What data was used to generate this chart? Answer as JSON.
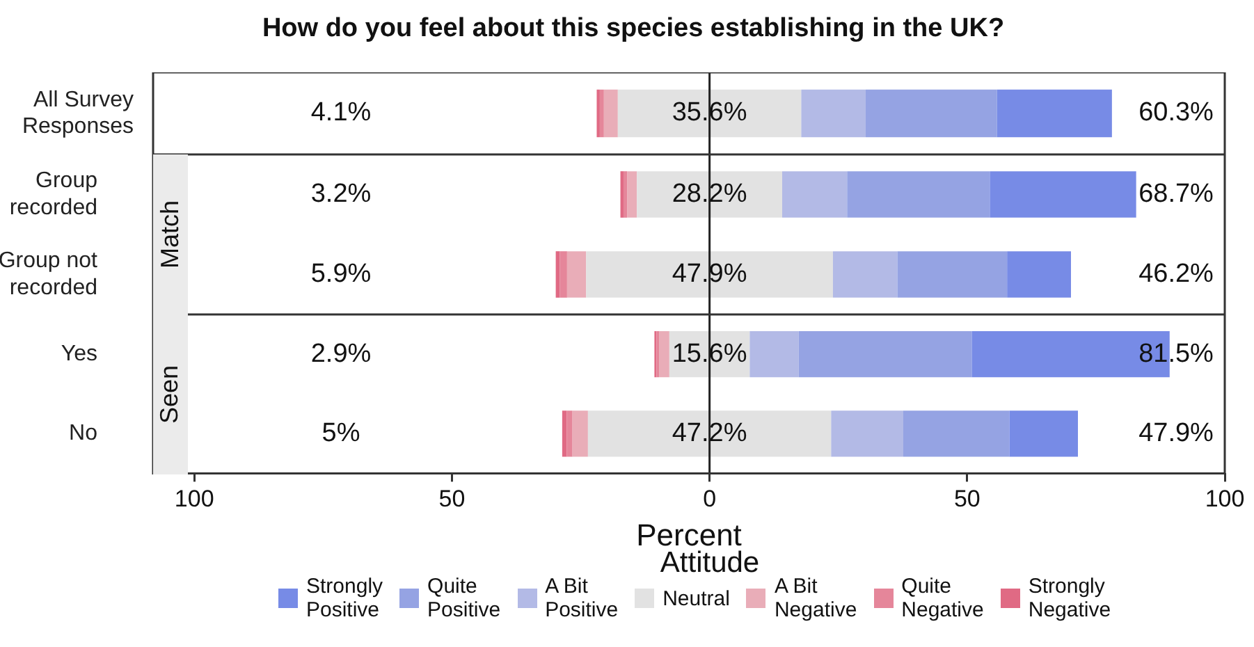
{
  "chart_data": [
    {
      "type": "bar",
      "orientation": "horizontal",
      "title": "How do you feel about this species establishing in the UK?",
      "categories": [
        "All Survey Responses"
      ],
      "xlim": [
        -108,
        100
      ],
      "tick_labels": "y",
      "series": [
        {
          "color": "#778be6",
          "values": [
            22.3
          ],
          "base": [
            55.8
          ]
        },
        {
          "color": "#95a3e3",
          "values": [
            25.5
          ],
          "base": [
            30.3
          ]
        },
        {
          "color": "#b3bae6",
          "values": [
            12.5
          ],
          "base": [
            17.8
          ]
        },
        {
          "color": "#e2e2e2",
          "values": [
            35.6
          ],
          "base": [
            -17.8
          ],
          "value_labels": [
            "35.6%"
          ]
        },
        {
          "color": "#e9adb8",
          "values": [
            2.7
          ],
          "base": [
            -20.5
          ]
        },
        {
          "color": "#e5869a",
          "values": [
            0.8
          ],
          "base": [
            -21.3
          ]
        },
        {
          "color": "#e06a84",
          "values": [
            0.6
          ],
          "base": [
            -21.9
          ]
        }
      ],
      "ref_lines": [
        {
          "axis": "x",
          "value": 0
        }
      ],
      "annotations": [
        "4.1%",
        "60.3%"
      ]
    },
    {
      "type": "bar",
      "orientation": "horizontal",
      "ylabel": "Match",
      "categories": [
        "Group recorded",
        "Group not recorded"
      ],
      "xlim": [
        -108,
        100
      ],
      "tick_labels": "y",
      "series": [
        {
          "color": "#778be6",
          "values": [
            28.4,
            12.4
          ],
          "base": [
            54.4,
            57.75
          ]
        },
        {
          "color": "#95a3e3",
          "values": [
            27.7,
            21.3
          ],
          "base": [
            26.7,
            36.45
          ]
        },
        {
          "color": "#b3bae6",
          "values": [
            12.6,
            12.5
          ],
          "base": [
            14.1,
            23.95
          ]
        },
        {
          "color": "#e2e2e2",
          "values": [
            28.2,
            47.9
          ],
          "base": [
            -14.1,
            -23.95
          ],
          "value_labels": [
            "28.2%",
            "47.9%"
          ]
        },
        {
          "color": "#e9adb8",
          "values": [
            1.9,
            3.7
          ],
          "base": [
            -16.0,
            -27.65
          ]
        },
        {
          "color": "#e5869a",
          "values": [
            0.7,
            1.4
          ],
          "base": [
            -16.7,
            -29.05
          ]
        },
        {
          "color": "#e06a84",
          "values": [
            0.6,
            0.8
          ],
          "base": [
            -17.3,
            -29.85
          ]
        }
      ],
      "ref_lines": [
        {
          "axis": "x",
          "value": 0
        }
      ],
      "annotations": [
        "3.2%",
        "68.7%",
        "5.9%",
        "46.2%"
      ]
    },
    {
      "type": "bar",
      "orientation": "horizontal",
      "ylabel": "Seen",
      "xlabel": "Percent",
      "legend_title": "Attitude",
      "legend": "bottom",
      "categories": [
        "Yes",
        "No"
      ],
      "xlim": [
        -108,
        100
      ],
      "xticks": [
        {
          "value": -100,
          "label": "100"
        },
        {
          "value": -50,
          "label": "50"
        },
        0,
        50,
        100
      ],
      "series": [
        {
          "name": "Strongly Positive",
          "color": "#778be6",
          "values": [
            38.4,
            13.3
          ],
          "base": [
            50.9,
            58.2
          ]
        },
        {
          "name": "Quite Positive",
          "color": "#95a3e3",
          "values": [
            33.6,
            20.6
          ],
          "base": [
            17.3,
            37.6
          ]
        },
        {
          "name": "A Bit Positive",
          "color": "#b3bae6",
          "values": [
            9.5,
            14.0
          ],
          "base": [
            7.8,
            23.6
          ]
        },
        {
          "name": "Neutral",
          "color": "#e2e2e2",
          "values": [
            15.6,
            47.2
          ],
          "base": [
            -7.8,
            -23.6
          ],
          "value_labels": [
            "15.6%",
            "47.2%"
          ]
        },
        {
          "name": "A Bit Negative",
          "color": "#e9adb8",
          "values": [
            2.0,
            3.0
          ],
          "base": [
            -9.8,
            -26.6
          ]
        },
        {
          "name": "Quite Negative",
          "color": "#e5869a",
          "values": [
            0.5,
            1.1
          ],
          "base": [
            -10.3,
            -27.7
          ]
        },
        {
          "name": "Strongly Negative",
          "color": "#e06a84",
          "values": [
            0.4,
            0.9
          ],
          "base": [
            -10.7,
            -28.6
          ]
        }
      ],
      "ref_lines": [
        {
          "axis": "x",
          "value": 0
        }
      ],
      "annotations": [
        "2.9%",
        "81.5%",
        "5%",
        "47.9%"
      ]
    }
  ]
}
